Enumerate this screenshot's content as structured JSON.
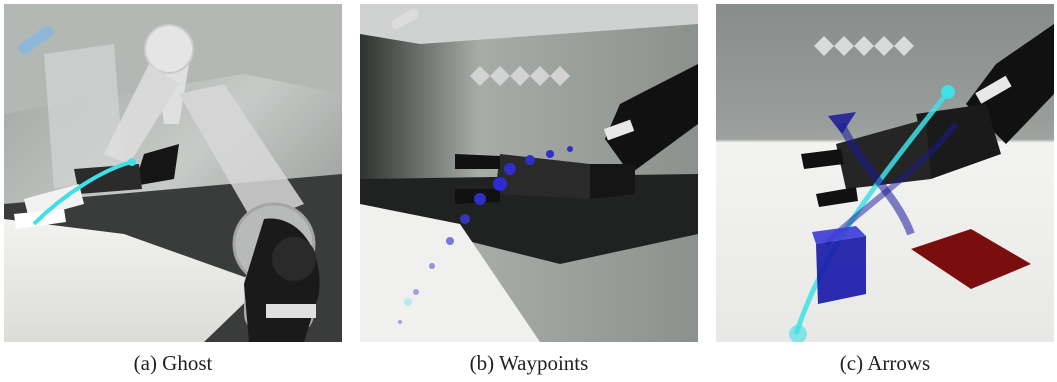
{
  "figure": {
    "panels": [
      {
        "id": "a",
        "caption": "(a) Ghost",
        "visualization": "ghost",
        "accent_color": "#35d6dc"
      },
      {
        "id": "b",
        "caption": "(b) Waypoints",
        "visualization": "waypoints",
        "accent_color": "#2f2fc8"
      },
      {
        "id": "c",
        "caption": "(c) Arrows",
        "visualization": "arrows",
        "accent_color": "#1a1a9a"
      }
    ],
    "colors": {
      "robot_dark": "#111111",
      "robot_light_ghost": "#e8e8e8",
      "cyan_path": "#3fe0e6",
      "blue_marker": "#2b2bd0",
      "target_pad": "#7a0d0d",
      "progress_diamond": "#d8d8d8"
    }
  }
}
